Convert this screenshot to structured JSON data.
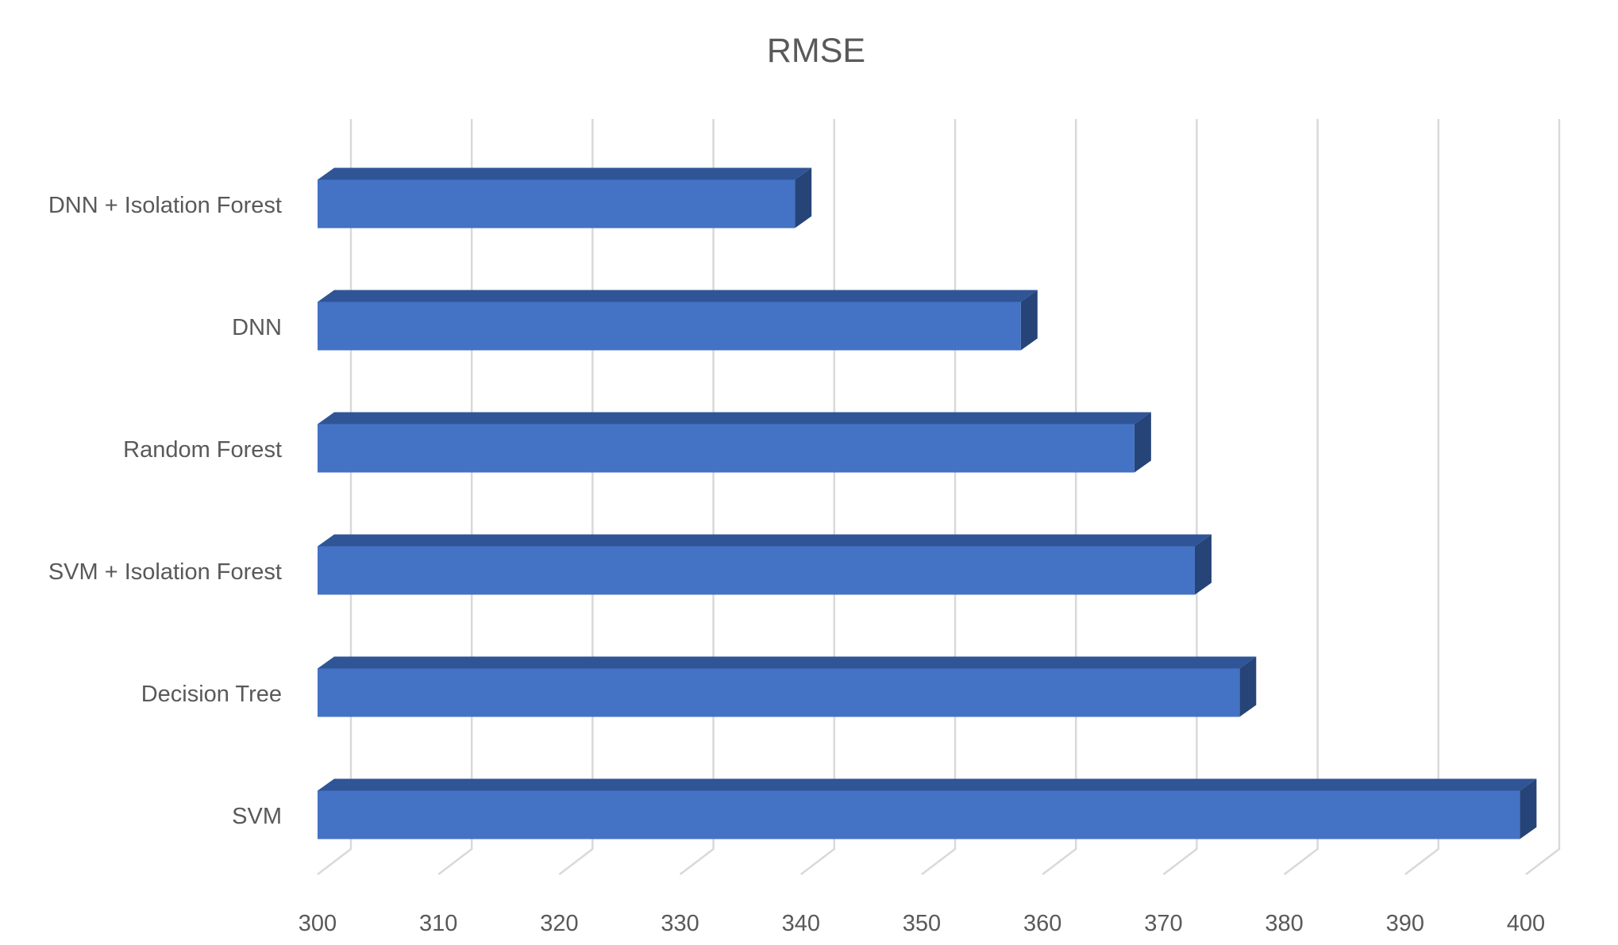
{
  "chart_data": {
    "type": "bar",
    "orientation": "horizontal",
    "title": "RMSE",
    "xlabel": "",
    "ylabel": "",
    "categories": [
      "DNN + Isolation Forest",
      "DNN",
      "Random Forest",
      "SVM + Isolation Forest",
      "Decision Tree",
      "SVM"
    ],
    "values": [
      339.5,
      358.2,
      367.6,
      372.6,
      376.3,
      399.5
    ],
    "xlim": [
      300,
      400
    ],
    "xticks": [
      "300",
      "310",
      "320",
      "330",
      "340",
      "350",
      "360",
      "370",
      "380",
      "390",
      "400"
    ],
    "grid": true,
    "legend": "none",
    "colors": {
      "bar_front": "#4472c4",
      "bar_top": "#2f5597",
      "bar_side": "#264478",
      "grid": "#d9d9d9",
      "text": "#595959"
    }
  }
}
